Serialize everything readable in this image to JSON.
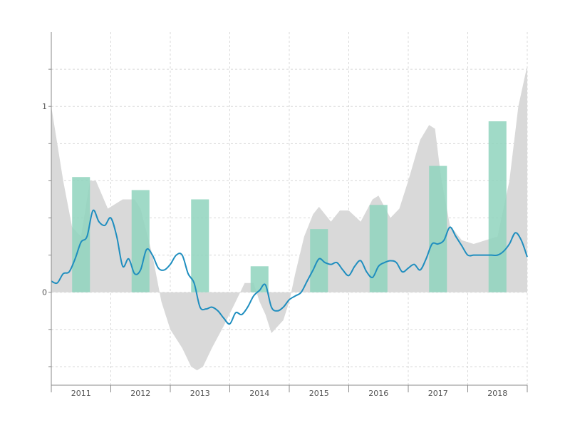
{
  "chart_data": {
    "type": "bar+line+area",
    "title": "",
    "xlabel": "",
    "ylabel": "",
    "xlim": [
      2010.5,
      2018.5
    ],
    "ylim": [
      -0.5,
      1.4
    ],
    "x_ticks": [
      "2011",
      "2012",
      "2013",
      "2014",
      "2015",
      "2016",
      "2017",
      "2018"
    ],
    "y_ticks": [
      {
        "value": 0,
        "label": "0"
      },
      {
        "value": 1,
        "label": "1"
      }
    ],
    "grid": true,
    "colors": {
      "bar": "#8fd3bd",
      "line": "#1f8ebf",
      "area": "#d9d9d9",
      "grid": "#d8d8d8",
      "axis": "#888888"
    },
    "bars": {
      "categories": [
        "2011",
        "2012",
        "2013",
        "2014",
        "2015",
        "2016",
        "2017",
        "2018"
      ],
      "values": [
        0.62,
        0.55,
        0.5,
        0.14,
        0.34,
        0.47,
        0.68,
        0.92
      ]
    },
    "area": {
      "x": [
        2010.5,
        2010.7,
        2010.85,
        2011.0,
        2011.15,
        2011.25,
        2011.45,
        2011.7,
        2011.9,
        2012.0,
        2012.2,
        2012.35,
        2012.5,
        2012.7,
        2012.85,
        2012.95,
        2013.05,
        2013.2,
        2013.4,
        2013.6,
        2013.75,
        2013.9,
        2014.0,
        2014.1,
        2014.2,
        2014.4,
        2014.5,
        2014.6,
        2014.75,
        2014.9,
        2015.0,
        2015.2,
        2015.35,
        2015.5,
        2015.7,
        2015.9,
        2016.0,
        2016.2,
        2016.35,
        2016.5,
        2016.7,
        2016.85,
        2016.95,
        2017.05,
        2017.2,
        2017.4,
        2017.6,
        2017.8,
        2018.0,
        2018.2,
        2018.35,
        2018.5
      ],
      "values": [
        1.0,
        0.6,
        0.35,
        0.3,
        0.6,
        0.6,
        0.45,
        0.5,
        0.5,
        0.45,
        0.2,
        -0.05,
        -0.2,
        -0.3,
        -0.4,
        -0.42,
        -0.4,
        -0.3,
        -0.18,
        -0.05,
        0.05,
        0.05,
        -0.05,
        -0.12,
        -0.22,
        -0.15,
        -0.05,
        0.1,
        0.3,
        0.42,
        0.46,
        0.38,
        0.44,
        0.44,
        0.38,
        0.5,
        0.52,
        0.4,
        0.45,
        0.6,
        0.82,
        0.9,
        0.88,
        0.62,
        0.36,
        0.28,
        0.26,
        0.28,
        0.3,
        0.6,
        1.0,
        1.22
      ]
    },
    "line": {
      "x": [
        2010.5,
        2010.6,
        2010.7,
        2010.8,
        2010.9,
        2011.0,
        2011.1,
        2011.2,
        2011.3,
        2011.4,
        2011.5,
        2011.6,
        2011.7,
        2011.8,
        2011.9,
        2012.0,
        2012.1,
        2012.2,
        2012.3,
        2012.4,
        2012.5,
        2012.6,
        2012.7,
        2012.8,
        2012.9,
        2013.0,
        2013.1,
        2013.2,
        2013.3,
        2013.4,
        2013.5,
        2013.6,
        2013.7,
        2013.8,
        2013.9,
        2014.0,
        2014.1,
        2014.2,
        2014.3,
        2014.4,
        2014.5,
        2014.6,
        2014.7,
        2014.8,
        2014.9,
        2015.0,
        2015.1,
        2015.2,
        2015.3,
        2015.4,
        2015.5,
        2015.6,
        2015.7,
        2015.8,
        2015.9,
        2016.0,
        2016.1,
        2016.2,
        2016.3,
        2016.4,
        2016.5,
        2016.6,
        2016.7,
        2016.8,
        2016.9,
        2017.0,
        2017.1,
        2017.2,
        2017.3,
        2017.4,
        2017.5,
        2017.6,
        2017.7,
        2017.8,
        2017.9,
        2018.0,
        2018.1,
        2018.2,
        2018.3,
        2018.4,
        2018.5
      ],
      "values": [
        0.06,
        0.05,
        0.1,
        0.11,
        0.18,
        0.27,
        0.3,
        0.44,
        0.38,
        0.36,
        0.4,
        0.3,
        0.14,
        0.18,
        0.1,
        0.12,
        0.23,
        0.2,
        0.13,
        0.12,
        0.15,
        0.2,
        0.2,
        0.1,
        0.05,
        -0.08,
        -0.09,
        -0.08,
        -0.1,
        -0.14,
        -0.17,
        -0.11,
        -0.12,
        -0.08,
        -0.02,
        0.01,
        0.04,
        -0.08,
        -0.1,
        -0.08,
        -0.04,
        -0.02,
        0.0,
        0.06,
        0.12,
        0.18,
        0.16,
        0.15,
        0.16,
        0.12,
        0.09,
        0.14,
        0.17,
        0.11,
        0.08,
        0.14,
        0.16,
        0.17,
        0.16,
        0.11,
        0.13,
        0.15,
        0.12,
        0.18,
        0.26,
        0.26,
        0.28,
        0.35,
        0.3,
        0.25,
        0.2,
        0.2,
        0.2,
        0.2,
        0.2,
        0.2,
        0.22,
        0.26,
        0.32,
        0.28,
        0.19
      ]
    }
  }
}
